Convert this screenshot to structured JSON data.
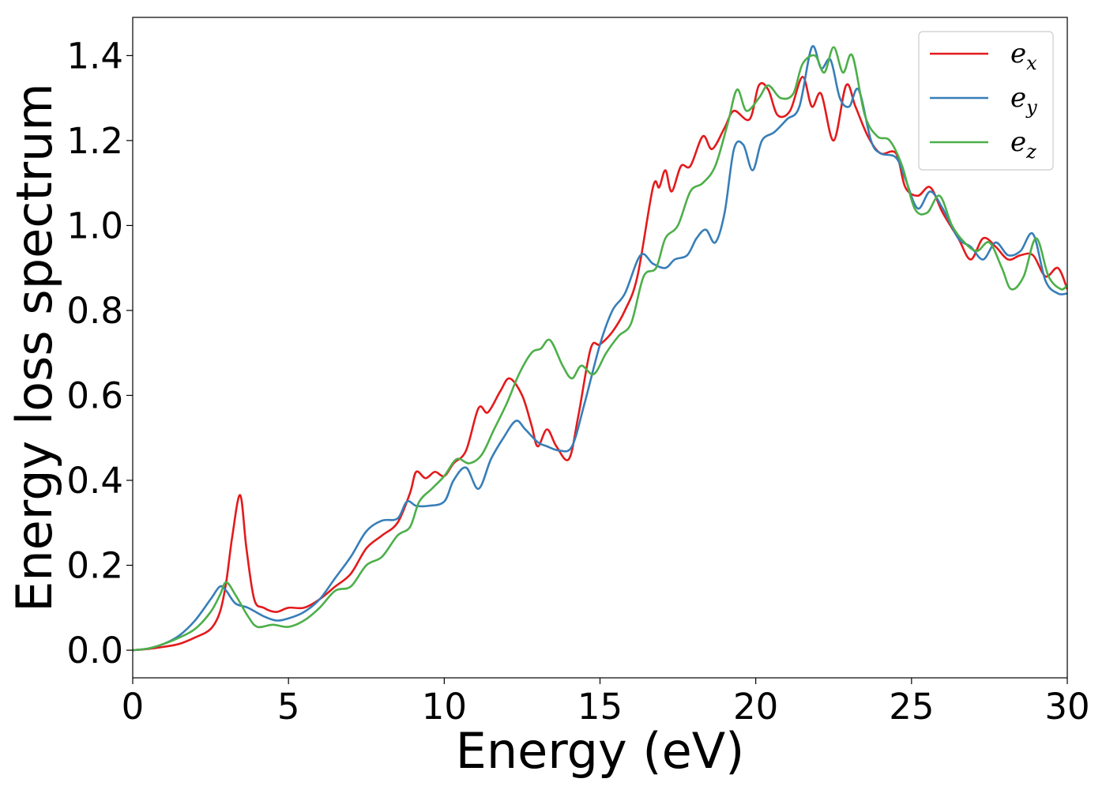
{
  "chart_data": {
    "type": "line",
    "title": "",
    "xlabel": "Energy (eV)",
    "ylabel": "Energy loss spectrum",
    "xlim": [
      0,
      30
    ],
    "ylim": [
      -0.065,
      1.49
    ],
    "xticks": [
      "0",
      "5",
      "10",
      "15",
      "20",
      "25",
      "30"
    ],
    "yticks": [
      "0.0",
      "0.2",
      "0.4",
      "0.6",
      "0.8",
      "1.0",
      "1.2",
      "1.4"
    ],
    "grid": false,
    "legend_position": "top-right",
    "series": [
      {
        "name": "e_x",
        "label_base": "e",
        "label_sub": "x",
        "color": "#e41a1c",
        "points": [
          [
            0,
            0
          ],
          [
            0.5,
            0.003
          ],
          [
            1,
            0.008
          ],
          [
            1.5,
            0.015
          ],
          [
            2,
            0.03
          ],
          [
            2.5,
            0.05
          ],
          [
            2.8,
            0.09
          ],
          [
            3.0,
            0.16
          ],
          [
            3.2,
            0.27
          ],
          [
            3.45,
            0.365
          ],
          [
            3.65,
            0.24
          ],
          [
            3.9,
            0.12
          ],
          [
            4.2,
            0.1
          ],
          [
            4.6,
            0.09
          ],
          [
            5.0,
            0.1
          ],
          [
            5.5,
            0.1
          ],
          [
            6,
            0.12
          ],
          [
            6.5,
            0.15
          ],
          [
            7,
            0.18
          ],
          [
            7.5,
            0.24
          ],
          [
            8,
            0.27
          ],
          [
            8.5,
            0.3
          ],
          [
            8.9,
            0.37
          ],
          [
            9.1,
            0.42
          ],
          [
            9.4,
            0.405
          ],
          [
            9.7,
            0.42
          ],
          [
            10,
            0.41
          ],
          [
            10.3,
            0.44
          ],
          [
            10.7,
            0.47
          ],
          [
            11.1,
            0.57
          ],
          [
            11.4,
            0.56
          ],
          [
            11.8,
            0.61
          ],
          [
            12.1,
            0.64
          ],
          [
            12.5,
            0.6
          ],
          [
            12.8,
            0.53
          ],
          [
            13,
            0.48
          ],
          [
            13.3,
            0.52
          ],
          [
            13.6,
            0.48
          ],
          [
            14,
            0.45
          ],
          [
            14.3,
            0.55
          ],
          [
            14.7,
            0.71
          ],
          [
            15,
            0.72
          ],
          [
            15.4,
            0.75
          ],
          [
            15.8,
            0.8
          ],
          [
            16.2,
            0.88
          ],
          [
            16.7,
            1.09
          ],
          [
            16.9,
            1.09
          ],
          [
            17.1,
            1.13
          ],
          [
            17.3,
            1.08
          ],
          [
            17.6,
            1.14
          ],
          [
            17.9,
            1.14
          ],
          [
            18.3,
            1.21
          ],
          [
            18.6,
            1.18
          ],
          [
            19,
            1.23
          ],
          [
            19.3,
            1.27
          ],
          [
            19.8,
            1.25
          ],
          [
            20.1,
            1.33
          ],
          [
            20.4,
            1.32
          ],
          [
            20.7,
            1.26
          ],
          [
            21.1,
            1.27
          ],
          [
            21.5,
            1.35
          ],
          [
            21.8,
            1.28
          ],
          [
            22.1,
            1.31
          ],
          [
            22.5,
            1.2
          ],
          [
            22.9,
            1.33
          ],
          [
            23.2,
            1.28
          ],
          [
            23.6,
            1.21
          ],
          [
            24,
            1.17
          ],
          [
            24.5,
            1.17
          ],
          [
            24.8,
            1.09
          ],
          [
            25.2,
            1.07
          ],
          [
            25.6,
            1.09
          ],
          [
            26,
            1.03
          ],
          [
            26.5,
            0.97
          ],
          [
            26.9,
            0.92
          ],
          [
            27.3,
            0.97
          ],
          [
            27.7,
            0.95
          ],
          [
            28.1,
            0.92
          ],
          [
            28.5,
            0.93
          ],
          [
            28.9,
            0.93
          ],
          [
            29.3,
            0.88
          ],
          [
            29.7,
            0.9
          ],
          [
            30,
            0.85
          ]
        ]
      },
      {
        "name": "e_y",
        "label_base": "e",
        "label_sub": "y",
        "color": "#377eb8",
        "points": [
          [
            0,
            0
          ],
          [
            0.5,
            0.004
          ],
          [
            1,
            0.015
          ],
          [
            1.5,
            0.035
          ],
          [
            2,
            0.07
          ],
          [
            2.5,
            0.12
          ],
          [
            2.8,
            0.15
          ],
          [
            3.0,
            0.14
          ],
          [
            3.3,
            0.11
          ],
          [
            3.7,
            0.1
          ],
          [
            4.2,
            0.08
          ],
          [
            4.6,
            0.07
          ],
          [
            5.0,
            0.075
          ],
          [
            5.5,
            0.09
          ],
          [
            6,
            0.12
          ],
          [
            6.5,
            0.17
          ],
          [
            7,
            0.22
          ],
          [
            7.5,
            0.28
          ],
          [
            8,
            0.305
          ],
          [
            8.5,
            0.31
          ],
          [
            8.8,
            0.35
          ],
          [
            9.1,
            0.34
          ],
          [
            9.5,
            0.34
          ],
          [
            10,
            0.35
          ],
          [
            10.3,
            0.4
          ],
          [
            10.7,
            0.43
          ],
          [
            11.1,
            0.38
          ],
          [
            11.5,
            0.45
          ],
          [
            11.9,
            0.5
          ],
          [
            12.3,
            0.54
          ],
          [
            12.6,
            0.52
          ],
          [
            13,
            0.49
          ],
          [
            13.3,
            0.48
          ],
          [
            13.7,
            0.47
          ],
          [
            14.1,
            0.48
          ],
          [
            14.5,
            0.58
          ],
          [
            15,
            0.72
          ],
          [
            15.4,
            0.8
          ],
          [
            15.8,
            0.84
          ],
          [
            16.3,
            0.93
          ],
          [
            16.7,
            0.91
          ],
          [
            17.1,
            0.9
          ],
          [
            17.4,
            0.92
          ],
          [
            17.8,
            0.93
          ],
          [
            18.1,
            0.97
          ],
          [
            18.4,
            0.99
          ],
          [
            18.7,
            0.96
          ],
          [
            19,
            1.03
          ],
          [
            19.3,
            1.18
          ],
          [
            19.6,
            1.19
          ],
          [
            19.9,
            1.13
          ],
          [
            20.2,
            1.2
          ],
          [
            20.6,
            1.22
          ],
          [
            21,
            1.25
          ],
          [
            21.4,
            1.28
          ],
          [
            21.8,
            1.42
          ],
          [
            22.1,
            1.37
          ],
          [
            22.4,
            1.39
          ],
          [
            22.7,
            1.3
          ],
          [
            23,
            1.28
          ],
          [
            23.3,
            1.32
          ],
          [
            23.7,
            1.2
          ],
          [
            24,
            1.17
          ],
          [
            24.5,
            1.16
          ],
          [
            24.8,
            1.11
          ],
          [
            25.2,
            1.04
          ],
          [
            25.6,
            1.08
          ],
          [
            26,
            1.04
          ],
          [
            26.5,
            0.97
          ],
          [
            26.9,
            0.95
          ],
          [
            27.3,
            0.92
          ],
          [
            27.7,
            0.96
          ],
          [
            28.1,
            0.93
          ],
          [
            28.5,
            0.94
          ],
          [
            28.9,
            0.98
          ],
          [
            29.3,
            0.87
          ],
          [
            29.7,
            0.84
          ],
          [
            30,
            0.84
          ]
        ]
      },
      {
        "name": "e_z",
        "label_base": "e",
        "label_sub": "z",
        "color": "#4daf4a",
        "points": [
          [
            0,
            0
          ],
          [
            0.5,
            0.004
          ],
          [
            1,
            0.015
          ],
          [
            1.5,
            0.03
          ],
          [
            2,
            0.05
          ],
          [
            2.5,
            0.09
          ],
          [
            2.8,
            0.13
          ],
          [
            3.0,
            0.16
          ],
          [
            3.3,
            0.13
          ],
          [
            3.7,
            0.08
          ],
          [
            4.0,
            0.055
          ],
          [
            4.5,
            0.06
          ],
          [
            5.0,
            0.055
          ],
          [
            5.5,
            0.07
          ],
          [
            6,
            0.1
          ],
          [
            6.5,
            0.14
          ],
          [
            7,
            0.15
          ],
          [
            7.5,
            0.2
          ],
          [
            8,
            0.22
          ],
          [
            8.5,
            0.27
          ],
          [
            8.9,
            0.29
          ],
          [
            9.2,
            0.35
          ],
          [
            9.6,
            0.38
          ],
          [
            10,
            0.41
          ],
          [
            10.4,
            0.45
          ],
          [
            10.8,
            0.44
          ],
          [
            11.2,
            0.46
          ],
          [
            11.6,
            0.52
          ],
          [
            12,
            0.58
          ],
          [
            12.4,
            0.65
          ],
          [
            12.8,
            0.7
          ],
          [
            13.1,
            0.71
          ],
          [
            13.4,
            0.73
          ],
          [
            13.8,
            0.67
          ],
          [
            14.1,
            0.64
          ],
          [
            14.4,
            0.67
          ],
          [
            14.8,
            0.65
          ],
          [
            15.2,
            0.7
          ],
          [
            15.6,
            0.74
          ],
          [
            16,
            0.77
          ],
          [
            16.4,
            0.88
          ],
          [
            16.8,
            0.9
          ],
          [
            17.1,
            0.97
          ],
          [
            17.5,
            1.0
          ],
          [
            17.9,
            1.08
          ],
          [
            18.3,
            1.1
          ],
          [
            18.7,
            1.14
          ],
          [
            19.1,
            1.24
          ],
          [
            19.4,
            1.32
          ],
          [
            19.7,
            1.27
          ],
          [
            20.1,
            1.3
          ],
          [
            20.4,
            1.33
          ],
          [
            20.8,
            1.3
          ],
          [
            21.2,
            1.31
          ],
          [
            21.5,
            1.38
          ],
          [
            21.9,
            1.4
          ],
          [
            22.2,
            1.36
          ],
          [
            22.5,
            1.42
          ],
          [
            22.8,
            1.36
          ],
          [
            23.1,
            1.4
          ],
          [
            23.5,
            1.26
          ],
          [
            23.9,
            1.21
          ],
          [
            24.3,
            1.2
          ],
          [
            24.7,
            1.14
          ],
          [
            25.1,
            1.04
          ],
          [
            25.5,
            1.03
          ],
          [
            25.9,
            1.07
          ],
          [
            26.3,
            1.0
          ],
          [
            26.7,
            0.96
          ],
          [
            27.1,
            0.94
          ],
          [
            27.5,
            0.96
          ],
          [
            27.9,
            0.9
          ],
          [
            28.2,
            0.85
          ],
          [
            28.6,
            0.88
          ],
          [
            29,
            0.97
          ],
          [
            29.4,
            0.88
          ],
          [
            29.8,
            0.85
          ],
          [
            30,
            0.86
          ]
        ]
      }
    ]
  }
}
